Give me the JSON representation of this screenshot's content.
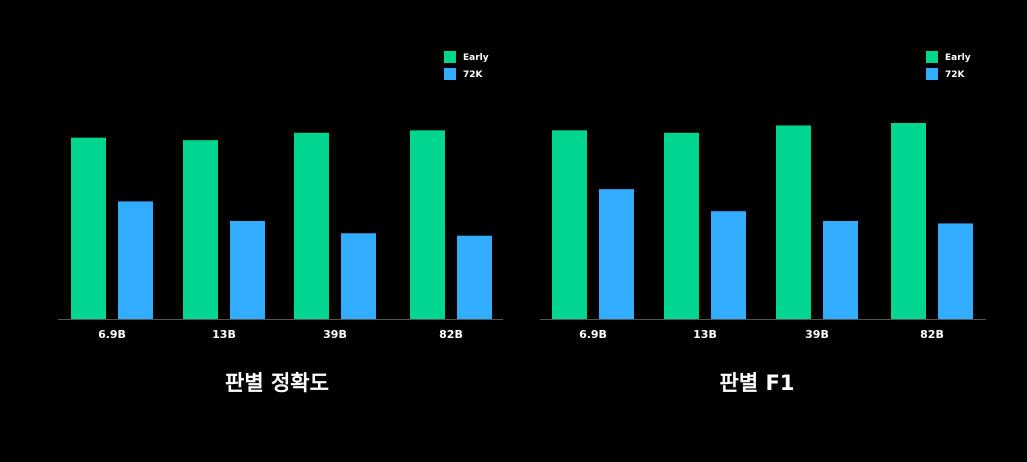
{
  "chart_data": [
    {
      "type": "bar",
      "title": "판별 정확도",
      "categories": [
        "6.9B",
        "13B",
        "39B",
        "82B"
      ],
      "series": [
        {
          "name": "Early",
          "values": [
            74,
            73,
            76,
            77
          ]
        },
        {
          "name": "72K",
          "values": [
            48,
            40,
            35,
            34
          ]
        }
      ],
      "ylim": [
        0,
        100
      ],
      "grid": false,
      "legend": "top-right"
    },
    {
      "type": "bar",
      "title": "판별 F1",
      "categories": [
        "6.9B",
        "13B",
        "39B",
        "82B"
      ],
      "series": [
        {
          "name": "Early",
          "values": [
            77,
            76,
            79,
            80
          ]
        },
        {
          "name": "72K",
          "values": [
            53,
            44,
            40,
            39
          ]
        }
      ],
      "ylim": [
        0,
        100
      ],
      "grid": false,
      "legend": "top-right"
    }
  ],
  "colors": {
    "background": "#000000",
    "early": "#00d68f",
    "k72": "#33adff",
    "axis": "#555555",
    "text": "#ffffff"
  }
}
